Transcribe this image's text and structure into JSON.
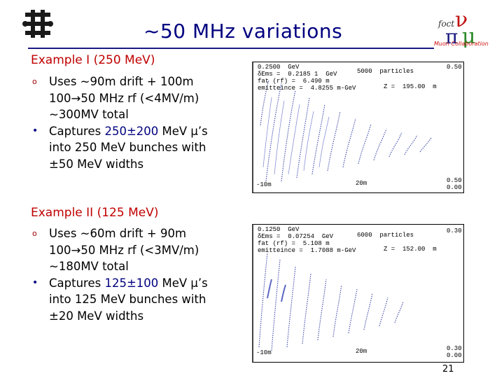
{
  "slide": {
    "title": "~50 MHz variations",
    "page_number": "21",
    "logo_text": "Muon Collaboration"
  },
  "example1": {
    "heading": "Example I (250 MeV)",
    "items": [
      {
        "marker": "o",
        "lines": [
          "Uses ~90m drift + 100m",
          "100→50 MHz rf (<4MV/m)",
          "~300MV total"
        ]
      },
      {
        "marker": "•",
        "lines": [
          "Captures 250±200 MeV μ’s",
          "into 250 MeV bunches with",
          "±50 MeV widths"
        ],
        "highlight": "250±200"
      }
    ],
    "plot": {
      "top_left": [
        "0.2500  GeV",
        "δEms =  0.2185 1  GeV",
        "fat (rf) =  6.490 m",
        "emitteince =  4.8255 m-GeV"
      ],
      "particles": "5000  particles",
      "z": "Z =  195.00  m",
      "top_right": "0.50",
      "bottom_left": "-10m",
      "bottom_mid": "20m",
      "bottom_right": [
        "0.50",
        "0.00"
      ]
    }
  },
  "example2": {
    "heading": "Example II (125 MeV)",
    "items": [
      {
        "marker": "o",
        "lines": [
          "Uses ~60m drift + 90m",
          "100→50 MHz rf (<3MV/m)",
          "~180MV total"
        ]
      },
      {
        "marker": "•",
        "lines": [
          "Captures 125±100 MeV μ’s",
          "into 125 MeV bunches with",
          "±20 MeV widths"
        ],
        "highlight": "125±100"
      }
    ],
    "plot": {
      "top_left": [
        "0.1250  GeV",
        "δEms =  0.07254  GeV",
        "fat (rf) =  5.108 m",
        "emitteince =  1.7088 m-GeV"
      ],
      "particles": "6000  particles",
      "z": "Z =  152.00  m",
      "top_right": "0.30",
      "bottom_left": "-10m",
      "bottom_mid": "20m",
      "bottom_right": [
        "0.30",
        "0.00"
      ]
    }
  }
}
